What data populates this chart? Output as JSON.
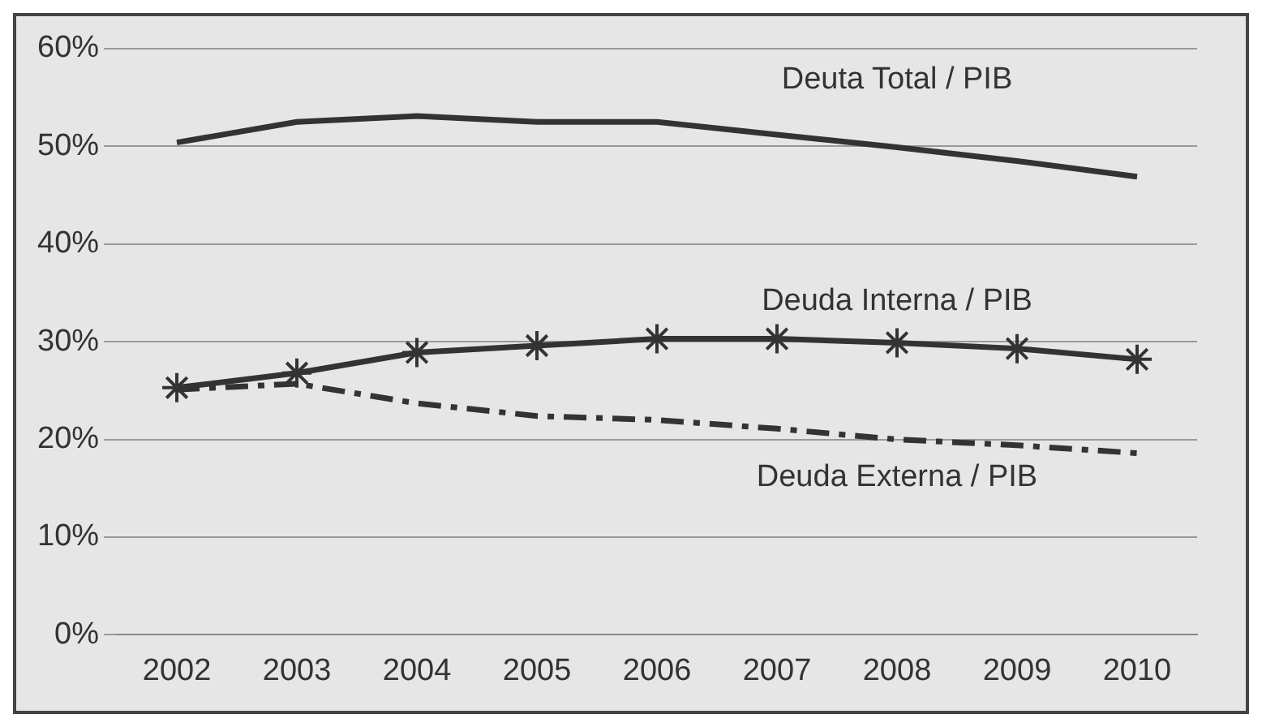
{
  "chart_data": {
    "type": "line",
    "categories": [
      "2002",
      "2003",
      "2004",
      "2005",
      "2006",
      "2007",
      "2008",
      "2009",
      "2010"
    ],
    "series": [
      {
        "name": "Deuta Total / PIB",
        "color": "#333333",
        "marker": "none",
        "line_style": "solid",
        "values": [
          50.4,
          52.5,
          53.1,
          52.5,
          52.5,
          51.2,
          49.9,
          48.5,
          46.9
        ]
      },
      {
        "name": "Deuda Interna / PIB",
        "color": "#333333",
        "marker": "cross",
        "line_style": "solid",
        "values": [
          25.3,
          26.8,
          28.9,
          29.6,
          30.3,
          30.3,
          29.9,
          29.3,
          28.2
        ]
      },
      {
        "name": "Deuda Externa / PIB",
        "color": "#333333",
        "marker": "none",
        "line_style": "dashed",
        "values": [
          25.1,
          25.7,
          23.7,
          22.4,
          22.0,
          21.1,
          20.0,
          19.4,
          18.6
        ]
      }
    ],
    "ylim": [
      0,
      60
    ],
    "yticks": [
      {
        "value": 0,
        "label": "0%"
      },
      {
        "value": 10,
        "label": "10%"
      },
      {
        "value": 20,
        "label": "20%"
      },
      {
        "value": 30,
        "label": "30%"
      },
      {
        "value": 40,
        "label": "40%"
      },
      {
        "value": 50,
        "label": "50%"
      },
      {
        "value": 60,
        "label": "60%"
      }
    ],
    "grid": "y",
    "legend": false
  }
}
